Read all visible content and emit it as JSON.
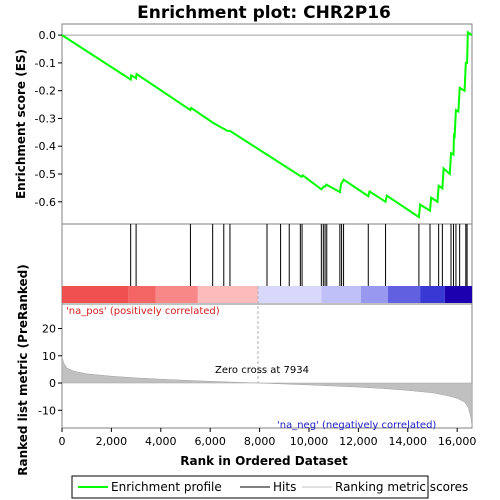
{
  "chart_data": {
    "type": "line",
    "title": "Enrichment plot: CHR2P16",
    "es_panel": {
      "ylabel": "Enrichment score (ES)",
      "ylim": [
        -0.68,
        0.04
      ],
      "yticks": [
        0.0,
        -0.1,
        -0.2,
        -0.3,
        -0.4,
        -0.5,
        -0.6
      ],
      "ytick_labels": [
        "0.0",
        "-0.1",
        "-0.2",
        "-0.3",
        "-0.4",
        "-0.5",
        "-0.6"
      ],
      "series_name": "Enrichment profile",
      "color": "#00ff00",
      "points": [
        [
          0,
          0.0
        ],
        [
          2780,
          -0.16
        ],
        [
          2800,
          -0.145
        ],
        [
          3000,
          -0.155
        ],
        [
          3020,
          -0.14
        ],
        [
          5200,
          -0.27
        ],
        [
          5230,
          -0.262
        ],
        [
          6100,
          -0.315
        ],
        [
          6700,
          -0.345
        ],
        [
          6800,
          -0.345
        ],
        [
          8300,
          -0.43
        ],
        [
          9700,
          -0.51
        ],
        [
          9750,
          -0.505
        ],
        [
          10500,
          -0.555
        ],
        [
          10600,
          -0.545
        ],
        [
          10650,
          -0.545
        ],
        [
          10700,
          -0.538
        ],
        [
          11250,
          -0.565
        ],
        [
          11300,
          -0.535
        ],
        [
          11350,
          -0.53
        ],
        [
          11400,
          -0.52
        ],
        [
          12400,
          -0.58
        ],
        [
          12450,
          -0.563
        ],
        [
          13100,
          -0.6
        ],
        [
          13150,
          -0.578
        ],
        [
          14450,
          -0.655
        ],
        [
          14500,
          -0.61
        ],
        [
          14900,
          -0.632
        ],
        [
          14950,
          -0.585
        ],
        [
          15200,
          -0.6
        ],
        [
          15250,
          -0.542
        ],
        [
          15400,
          -0.552
        ],
        [
          15450,
          -0.48
        ],
        [
          15700,
          -0.5
        ],
        [
          15750,
          -0.425
        ],
        [
          15850,
          -0.43
        ],
        [
          15870,
          -0.355
        ],
        [
          15900,
          -0.36
        ],
        [
          15950,
          -0.27
        ],
        [
          16050,
          -0.275
        ],
        [
          16100,
          -0.19
        ],
        [
          16300,
          -0.2
        ],
        [
          16350,
          -0.1
        ],
        [
          16400,
          -0.1
        ],
        [
          16430,
          0.01
        ],
        [
          16600,
          0.0
        ]
      ]
    },
    "hits": [
      2780,
      3000,
      5200,
      6100,
      6550,
      6800,
      8300,
      8850,
      9200,
      9650,
      9720,
      10500,
      10580,
      10650,
      10720,
      11250,
      11320,
      11400,
      12400,
      13100,
      14450,
      14900,
      15250,
      15400,
      15750,
      15850,
      15950,
      16100,
      16350,
      16400
    ],
    "rank_panel": {
      "ylabel": "Ranked list metric (PreRanked)",
      "ylim": [
        -16.5,
        29
      ],
      "yticks": [
        20,
        10,
        0,
        -10
      ],
      "ytick_labels": [
        "20",
        "10",
        "0",
        "-10"
      ],
      "series_name": "Ranking metric scores",
      "fill_color": "#c0c0c0",
      "zero_cross": 7934,
      "points": [
        [
          0,
          10
        ],
        [
          60,
          7.5
        ],
        [
          200,
          5.5
        ],
        [
          500,
          4.3
        ],
        [
          1000,
          3.4
        ],
        [
          2000,
          2.5
        ],
        [
          3000,
          1.9
        ],
        [
          4000,
          1.4
        ],
        [
          5000,
          1.0
        ],
        [
          6000,
          0.65
        ],
        [
          7000,
          0.3
        ],
        [
          7934,
          0.0
        ],
        [
          9000,
          -0.35
        ],
        [
          10000,
          -0.7
        ],
        [
          11000,
          -1.1
        ],
        [
          12000,
          -1.5
        ],
        [
          13000,
          -2.0
        ],
        [
          14000,
          -2.7
        ],
        [
          15000,
          -3.6
        ],
        [
          15600,
          -4.6
        ],
        [
          16000,
          -5.6
        ],
        [
          16300,
          -7.0
        ],
        [
          16450,
          -9.0
        ],
        [
          16550,
          -12.5
        ],
        [
          16600,
          -16.0
        ]
      ]
    },
    "xlabel": "Rank in Ordered Dataset",
    "xlim": [
      0,
      16600
    ],
    "xticks": [
      0,
      2000,
      4000,
      6000,
      8000,
      10000,
      12000,
      14000,
      16000
    ],
    "xtick_labels": [
      "0",
      "2,000",
      "4,000",
      "6,000",
      "8,000",
      "10,000",
      "12,000",
      "14,000",
      "16,000"
    ],
    "color_bar": [
      {
        "start": 0,
        "end": 2700,
        "color": "#f05050"
      },
      {
        "start": 2700,
        "end": 3800,
        "color": "#f46666"
      },
      {
        "start": 3800,
        "end": 5500,
        "color": "#f88888"
      },
      {
        "start": 5500,
        "end": 7934,
        "color": "#fcbcbc"
      },
      {
        "start": 7934,
        "end": 10500,
        "color": "#d8d8fc"
      },
      {
        "start": 10500,
        "end": 12100,
        "color": "#c0c0f8"
      },
      {
        "start": 12100,
        "end": 13200,
        "color": "#9898f0"
      },
      {
        "start": 13200,
        "end": 14500,
        "color": "#6060e0"
      },
      {
        "start": 14500,
        "end": 15500,
        "color": "#3838d4"
      },
      {
        "start": 15500,
        "end": 16600,
        "color": "#1c00b0"
      }
    ],
    "annotations": {
      "pos": "'na_pos' (positively correlated)",
      "neg": "'na_neg' (negatively correlated)",
      "zero": "Zero cross at 7934"
    },
    "legend": {
      "profile": "Enrichment profile",
      "hits": "Hits",
      "metric": "Ranking metric scores"
    }
  }
}
